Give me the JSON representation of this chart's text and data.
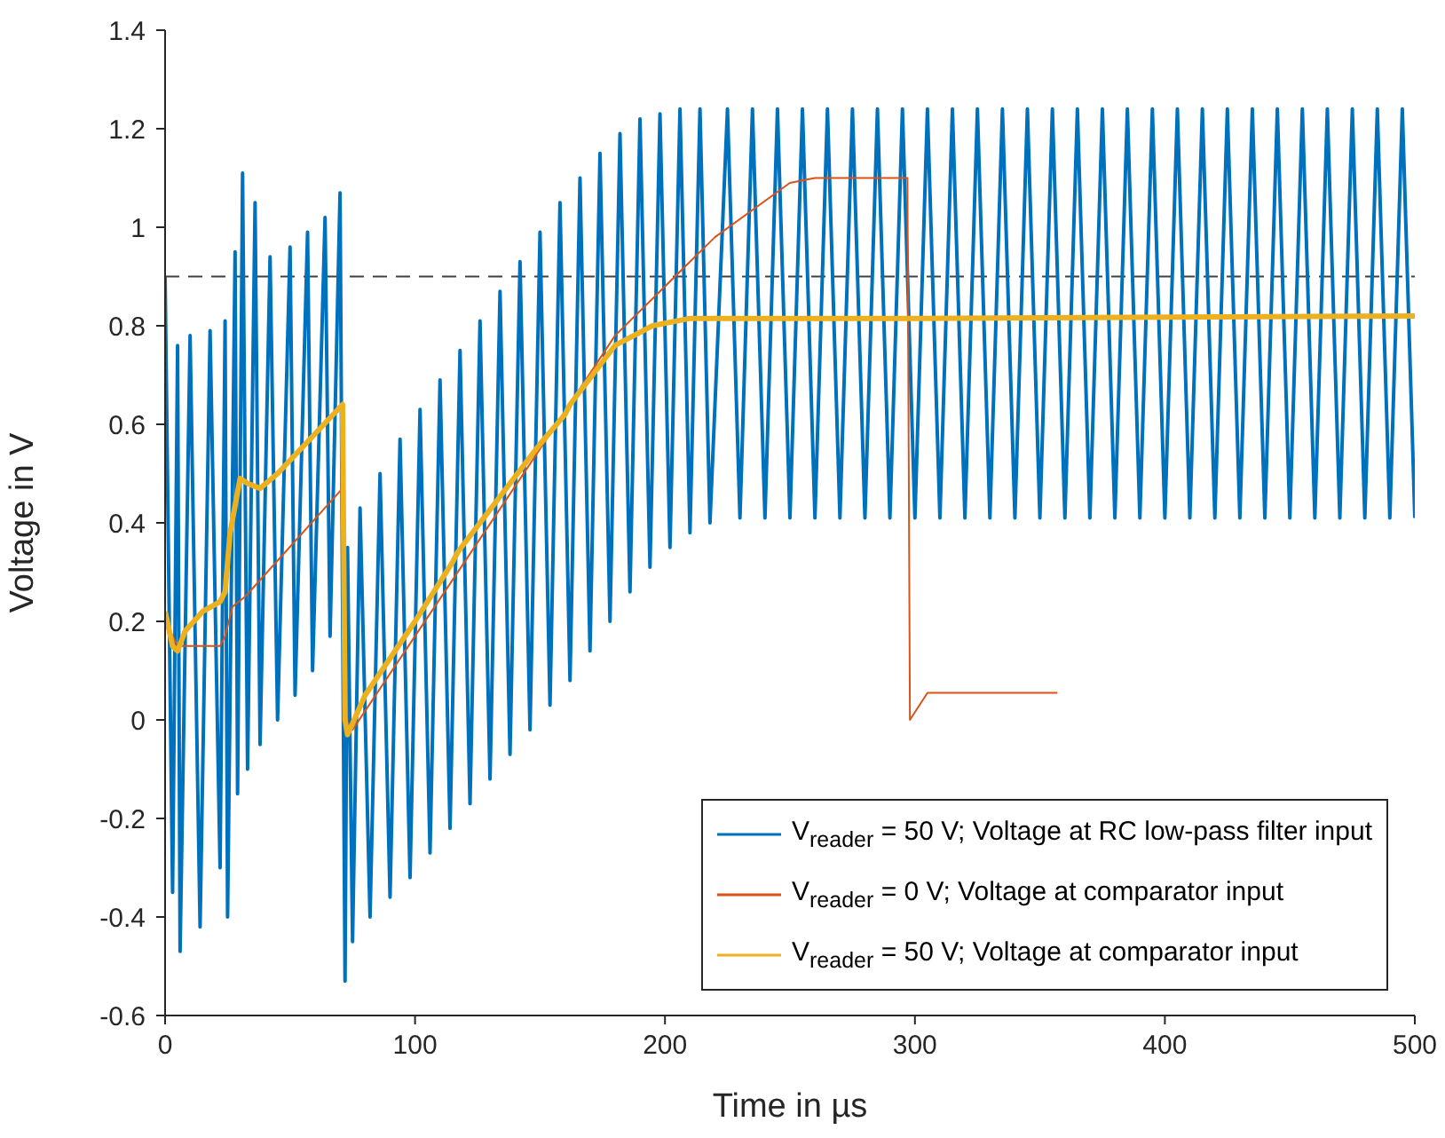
{
  "chart_data": {
    "type": "line",
    "xlabel": "Time in µs",
    "ylabel": "Voltage in V",
    "xlim": [
      0,
      500
    ],
    "xticks": [
      0,
      100,
      200,
      300,
      400,
      500
    ],
    "ylim": [
      -0.6,
      1.4
    ],
    "yticks": [
      -0.6,
      -0.4,
      -0.2,
      0,
      0.2,
      0.4,
      0.6,
      0.8,
      1,
      1.2,
      1.4
    ],
    "grid": false,
    "legend": "bottom right",
    "line_style": "solid",
    "marker": "none",
    "ref_lines": [
      {
        "axis": "y",
        "value": 0.9,
        "color": "#404040",
        "line_style": "dashed"
      }
    ],
    "series": [
      {
        "name": "V$_{reader}$ = 50 V; Voltage at RC low-pass filter input",
        "color": "#0072bd",
        "x": [
          0,
          3,
          5,
          6,
          10,
          14,
          18,
          22,
          24,
          25,
          28,
          29,
          31,
          33,
          36,
          38,
          42,
          45,
          50,
          52,
          57,
          59,
          64,
          66,
          70,
          71,
          72,
          73,
          75,
          78,
          82,
          86,
          90,
          94,
          98,
          102,
          106,
          110,
          114,
          118,
          122,
          126,
          130,
          134,
          138,
          142,
          146,
          150,
          154,
          158,
          162,
          166,
          170,
          174,
          178,
          182,
          186,
          190,
          194,
          198,
          202,
          206,
          210,
          214,
          218,
          225,
          230,
          235,
          240,
          245,
          250,
          255,
          260,
          265,
          270,
          275,
          280,
          285,
          290,
          295,
          300,
          305,
          310,
          315,
          320,
          325,
          330,
          335,
          340,
          345,
          350,
          355,
          360,
          365,
          370,
          375,
          380,
          385,
          390,
          395,
          400,
          405,
          410,
          415,
          420,
          425,
          430,
          435,
          440,
          445,
          450,
          455,
          460,
          465,
          470,
          475,
          480,
          485,
          490,
          495,
          500
        ],
        "values": [
          0.9,
          -0.35,
          0.76,
          -0.47,
          0.78,
          -0.42,
          0.79,
          -0.3,
          0.81,
          -0.4,
          0.95,
          -0.15,
          1.11,
          -0.1,
          1.05,
          -0.05,
          0.94,
          0.0,
          0.96,
          0.05,
          0.99,
          0.1,
          1.02,
          0.17,
          1.07,
          0.24,
          -0.53,
          0.35,
          -0.45,
          0.43,
          -0.4,
          0.5,
          -0.36,
          0.57,
          -0.32,
          0.63,
          -0.27,
          0.69,
          -0.22,
          0.75,
          -0.17,
          0.81,
          -0.12,
          0.87,
          -0.07,
          0.93,
          -0.02,
          0.99,
          0.03,
          1.05,
          0.08,
          1.1,
          0.14,
          1.15,
          0.2,
          1.19,
          0.26,
          1.22,
          0.31,
          1.23,
          0.35,
          1.24,
          0.38,
          1.24,
          0.4,
          1.24,
          0.41,
          1.24,
          0.41,
          1.24,
          0.41,
          1.24,
          0.41,
          1.24,
          0.41,
          1.24,
          0.41,
          1.24,
          0.41,
          1.24,
          0.41,
          1.24,
          0.41,
          1.24,
          0.41,
          1.24,
          0.41,
          1.24,
          0.41,
          1.24,
          0.41,
          1.24,
          0.41,
          1.24,
          0.41,
          1.24,
          0.41,
          1.24,
          0.41,
          1.24,
          0.41,
          1.24,
          0.41,
          1.24,
          0.41,
          1.24,
          0.41,
          1.24,
          0.41,
          1.24,
          0.41,
          1.24,
          0.41,
          1.24,
          0.41,
          1.24,
          0.41,
          1.24,
          0.41,
          1.24,
          0.41
        ]
      },
      {
        "name": "V$_{reader}$ = 0 V; Voltage at comparator input",
        "color": "#d95319",
        "x": [
          0,
          5,
          22,
          24,
          27,
          32,
          71,
          73,
          75,
          100,
          150,
          180,
          220,
          250,
          260,
          297,
          298,
          305,
          357
        ],
        "values": [
          0.2,
          0.15,
          0.15,
          0.17,
          0.23,
          0.25,
          0.47,
          -0.02,
          -0.02,
          0.17,
          0.55,
          0.78,
          0.98,
          1.09,
          1.1,
          1.1,
          0.0,
          0.055,
          0.055
        ]
      },
      {
        "name": "V$_{reader}$ = 50 V; Voltage at comparator input",
        "color": "#edb120",
        "x": [
          0,
          3,
          5,
          8,
          15,
          22,
          24,
          26,
          30,
          33,
          38,
          45,
          71,
          72,
          73,
          80,
          100,
          115,
          117,
          150,
          160,
          162,
          180,
          195,
          210,
          300,
          500
        ],
        "values": [
          0.22,
          0.15,
          0.14,
          0.18,
          0.22,
          0.24,
          0.26,
          0.38,
          0.49,
          0.48,
          0.47,
          0.5,
          0.64,
          0.0,
          -0.03,
          0.05,
          0.2,
          0.32,
          0.34,
          0.56,
          0.62,
          0.64,
          0.76,
          0.8,
          0.815,
          0.815,
          0.82
        ]
      }
    ]
  }
}
